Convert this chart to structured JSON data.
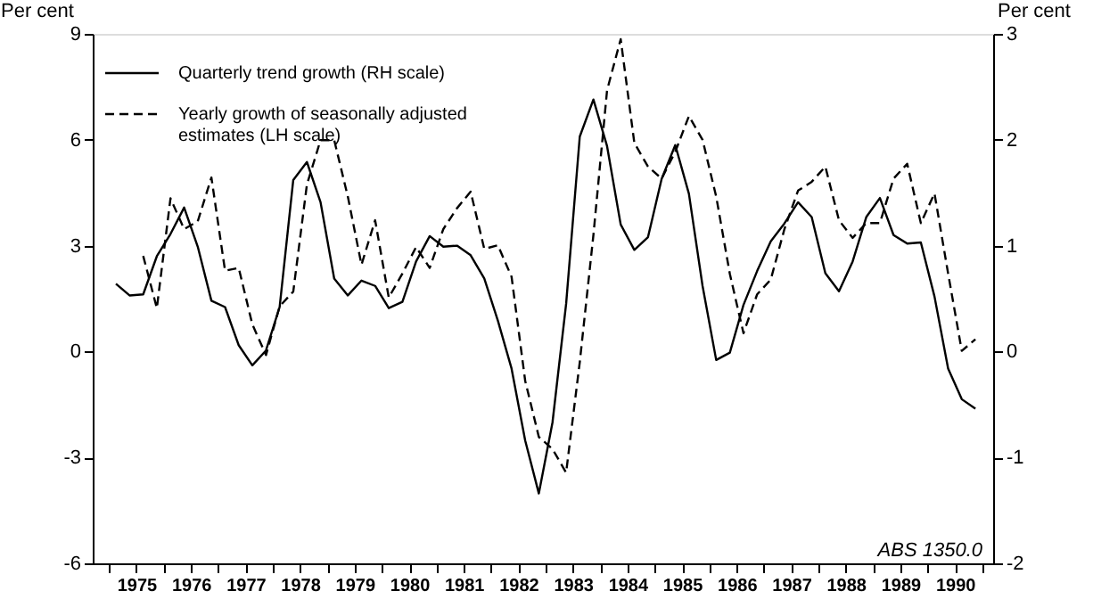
{
  "chart_data": {
    "type": "line",
    "ylabel": "Per cent",
    "y2label": "Per cent",
    "legend": "top left",
    "xlim": [
      1974.7,
      1991.2
    ],
    "xticks": [
      {
        "value": 1975,
        "label": null
      },
      {
        "value": 1975.5,
        "label": "1975"
      },
      {
        "value": 1976,
        "label": null
      },
      {
        "value": 1976.5,
        "label": "1976"
      },
      {
        "value": 1977,
        "label": null
      },
      {
        "value": 1977.5,
        "label": "1977"
      },
      {
        "value": 1978,
        "label": null
      },
      {
        "value": 1978.5,
        "label": "1978"
      },
      {
        "value": 1979,
        "label": null
      },
      {
        "value": 1979.5,
        "label": "1979"
      },
      {
        "value": 1980,
        "label": null
      },
      {
        "value": 1980.5,
        "label": "1980"
      },
      {
        "value": 1981,
        "label": null
      },
      {
        "value": 1981.5,
        "label": "1981"
      },
      {
        "value": 1982,
        "label": null
      },
      {
        "value": 1982.5,
        "label": "1982"
      },
      {
        "value": 1983,
        "label": null
      },
      {
        "value": 1983.5,
        "label": "1983"
      },
      {
        "value": 1984,
        "label": null
      },
      {
        "value": 1984.5,
        "label": "1984"
      },
      {
        "value": 1985,
        "label": null
      },
      {
        "value": 1985.5,
        "label": "1985"
      },
      {
        "value": 1986,
        "label": null
      },
      {
        "value": 1986.5,
        "label": "1986"
      },
      {
        "value": 1987,
        "label": null
      },
      {
        "value": 1987.5,
        "label": "1987"
      },
      {
        "value": 1988,
        "label": null
      },
      {
        "value": 1988.5,
        "label": "1988"
      },
      {
        "value": 1989,
        "label": null
      },
      {
        "value": 1989.5,
        "label": "1989"
      },
      {
        "value": 1990,
        "label": null
      },
      {
        "value": 1990.5,
        "label": "1990"
      },
      {
        "value": 1991,
        "label": null
      }
    ],
    "ylim": [
      -6,
      9
    ],
    "yticks": [
      -6,
      -3,
      0,
      3,
      6,
      9
    ],
    "y2lim": [
      -2,
      3
    ],
    "y2ticks": [
      -2,
      -1,
      0,
      1,
      2,
      3
    ],
    "annotations": [
      "ABS 1350.0"
    ],
    "series": [
      {
        "name": "Quarterly trend growth (RH scale)",
        "color": "#000000",
        "axis": "y2",
        "line_style": "solid",
        "x": [
          1975.125,
          1975.375,
          1975.625,
          1975.875,
          1976.125,
          1976.375,
          1976.625,
          1976.875,
          1977.125,
          1977.375,
          1977.625,
          1977.875,
          1978.125,
          1978.375,
          1978.625,
          1978.875,
          1979.125,
          1979.375,
          1979.625,
          1979.875,
          1980.125,
          1980.375,
          1980.625,
          1980.875,
          1981.125,
          1981.375,
          1981.625,
          1981.875,
          1982.125,
          1982.375,
          1982.625,
          1982.875,
          1983.125,
          1983.375,
          1983.625,
          1983.875,
          1984.125,
          1984.375,
          1984.625,
          1984.875,
          1985.125,
          1985.375,
          1985.625,
          1985.875,
          1986.125,
          1986.375,
          1986.625,
          1986.875,
          1987.125,
          1987.375,
          1987.625,
          1987.875,
          1988.125,
          1988.375,
          1988.625,
          1988.875,
          1989.125,
          1989.375,
          1989.625,
          1989.875,
          1990.125,
          1990.375,
          1990.625,
          1990.875
        ],
        "values": [
          0.64,
          0.53,
          0.54,
          0.9,
          1.11,
          1.36,
          0.99,
          0.48,
          0.42,
          0.06,
          -0.13,
          0.01,
          0.42,
          1.62,
          1.79,
          1.41,
          0.69,
          0.53,
          0.67,
          0.62,
          0.41,
          0.47,
          0.85,
          1.09,
          0.99,
          1.0,
          0.91,
          0.69,
          0.29,
          -0.16,
          -0.84,
          -1.34,
          -0.67,
          0.45,
          2.03,
          2.38,
          1.94,
          1.2,
          0.96,
          1.08,
          1.63,
          1.95,
          1.49,
          0.62,
          -0.08,
          -0.01,
          0.44,
          0.76,
          1.04,
          1.21,
          1.41,
          1.27,
          0.74,
          0.57,
          0.85,
          1.27,
          1.45,
          1.1,
          1.02,
          1.03,
          0.52,
          -0.16,
          -0.45,
          -0.54
        ]
      },
      {
        "name": "Yearly growth of seasonally adjusted estimates (LH scale)",
        "color": "#000000",
        "line_style": "dashed",
        "x": [
          1975.625,
          1975.875,
          1976.125,
          1976.375,
          1976.625,
          1976.875,
          1977.125,
          1977.375,
          1977.625,
          1977.875,
          1978.125,
          1978.375,
          1978.625,
          1978.875,
          1979.125,
          1979.375,
          1979.625,
          1979.875,
          1980.125,
          1980.375,
          1980.625,
          1980.875,
          1981.125,
          1981.375,
          1981.625,
          1981.875,
          1982.125,
          1982.375,
          1982.625,
          1982.875,
          1983.125,
          1983.375,
          1983.625,
          1983.875,
          1984.125,
          1984.375,
          1984.625,
          1984.875,
          1985.125,
          1985.375,
          1985.625,
          1985.875,
          1986.125,
          1986.375,
          1986.625,
          1986.875,
          1987.125,
          1987.375,
          1987.625,
          1987.875,
          1988.125,
          1988.375,
          1988.625,
          1988.875,
          1989.125,
          1989.375,
          1989.625,
          1989.875,
          1990.125,
          1990.375,
          1990.625,
          1990.875
        ],
        "values": [
          2.71,
          1.23,
          4.34,
          3.47,
          3.69,
          4.93,
          2.29,
          2.37,
          0.77,
          -0.1,
          1.28,
          1.7,
          4.73,
          5.99,
          5.99,
          4.39,
          2.46,
          3.72,
          1.53,
          2.21,
          2.96,
          2.37,
          3.47,
          4.06,
          4.53,
          2.91,
          3.01,
          2.12,
          -0.83,
          -2.42,
          -2.76,
          -3.43,
          -0.3,
          3.3,
          7.4,
          8.85,
          5.91,
          5.24,
          4.9,
          5.66,
          6.67,
          6.0,
          4.39,
          2.2,
          0.52,
          1.62,
          2.04,
          3.47,
          4.56,
          4.81,
          5.24,
          3.72,
          3.22,
          3.64,
          3.64,
          4.9,
          5.32,
          3.64,
          4.48,
          2.21,
          0.02,
          0.35
        ]
      }
    ]
  }
}
